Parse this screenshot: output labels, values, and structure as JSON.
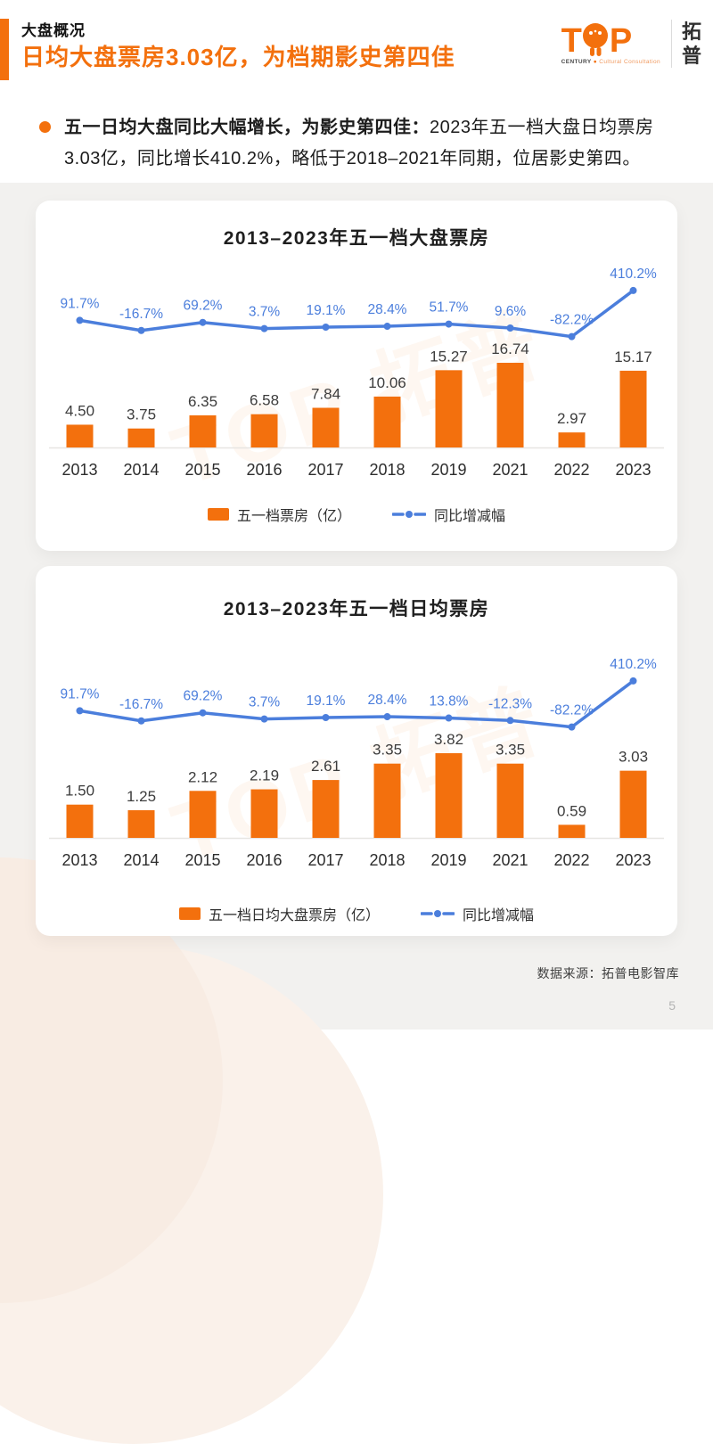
{
  "header": {
    "eyebrow": "大盘概况",
    "title": "日均大盘票房3.03亿，为档期影史第四佳"
  },
  "logo": {
    "letter_t": "T",
    "letter_p": "P",
    "century": "CENTURY",
    "tagline": "Cultural Consultation",
    "brand_cn": "拓普"
  },
  "summary": {
    "lead": "五一日均大盘同比大幅增长，为影史第四佳：",
    "body": "2023年五一档大盘日均票房3.03亿，同比增长410.2%，略低于2018–2021年同期，位居影史第四。"
  },
  "colors": {
    "orange": "#F3700D",
    "blue": "#4B7EDC"
  },
  "watermark": "TOP 拓普",
  "footer": {
    "source": "数据来源：拓普电影智库",
    "page_number": "5"
  },
  "chart_data": [
    {
      "type": "bar",
      "combo": "bar+line",
      "title": "2013–2023年五一档大盘票房",
      "categories": [
        "2013",
        "2014",
        "2015",
        "2016",
        "2017",
        "2018",
        "2019",
        "2021",
        "2022",
        "2023"
      ],
      "series": [
        {
          "name": "五一档票房（亿）",
          "type": "bar",
          "unit": "亿",
          "values": [
            4.5,
            3.75,
            6.35,
            6.58,
            7.84,
            10.06,
            15.27,
            16.74,
            2.97,
            15.17
          ]
        },
        {
          "name": "同比增减幅",
          "type": "line",
          "unit": "%",
          "values_pct": [
            91.7,
            -16.7,
            69.2,
            3.7,
            19.1,
            28.4,
            51.7,
            9.6,
            -82.2,
            410.2
          ]
        }
      ],
      "legend_position": "bottom",
      "grid": false
    },
    {
      "type": "bar",
      "combo": "bar+line",
      "title": "2013–2023年五一档日均票房",
      "categories": [
        "2013",
        "2014",
        "2015",
        "2016",
        "2017",
        "2018",
        "2019",
        "2021",
        "2022",
        "2023"
      ],
      "series": [
        {
          "name": "五一档日均大盘票房（亿）",
          "type": "bar",
          "unit": "亿",
          "values": [
            1.5,
            1.25,
            2.12,
            2.19,
            2.61,
            3.35,
            3.82,
            3.35,
            0.59,
            3.03
          ]
        },
        {
          "name": "同比增减幅",
          "type": "line",
          "unit": "%",
          "values_pct": [
            91.7,
            -16.7,
            69.2,
            3.7,
            19.1,
            28.4,
            13.8,
            -12.3,
            -82.2,
            410.2
          ]
        }
      ],
      "legend_position": "bottom",
      "grid": false
    }
  ]
}
